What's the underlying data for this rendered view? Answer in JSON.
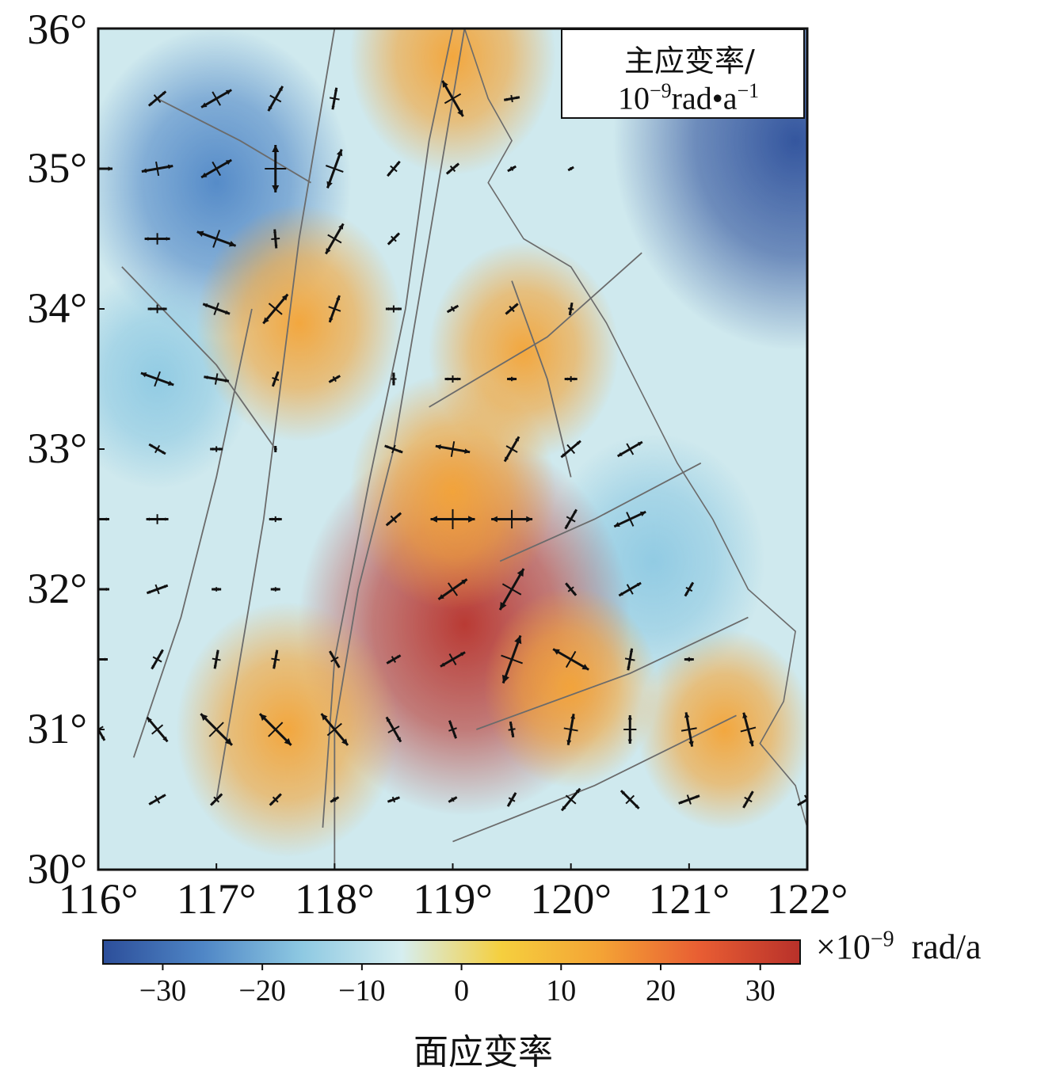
{
  "map": {
    "lon_ticks": [
      116,
      117,
      118,
      119,
      120,
      121,
      122
    ],
    "lat_ticks": [
      30,
      31,
      32,
      33,
      34,
      35,
      36
    ],
    "lon_labels": [
      "116°",
      "117°",
      "118°",
      "119°",
      "120°",
      "121°",
      "122°"
    ],
    "lat_labels": [
      "30°",
      "31°",
      "32°",
      "33°",
      "34°",
      "35°",
      "36°"
    ],
    "extent": {
      "lon": [
        116,
        122
      ],
      "lat": [
        30,
        36
      ]
    }
  },
  "legend": {
    "title": "主应变率/",
    "unit_base": "10",
    "unit_exp": "−9",
    "unit_rest": "rad•a",
    "unit_rest_exp": "−1"
  },
  "colorbar": {
    "ticks": [
      -30,
      -20,
      -10,
      0,
      10,
      20,
      30
    ],
    "tick_labels": [
      "−30",
      "−20",
      "−10",
      "0",
      "10",
      "20",
      "30"
    ],
    "range": [
      -36,
      34
    ],
    "unit_prefix": "×10",
    "unit_exp": "−9",
    "unit_suffix": "rad/a",
    "title": "面应变率",
    "colors": [
      "#2c4e9a",
      "#4f86c6",
      "#8ec9e2",
      "#d6eef0",
      "#f5cf3e",
      "#f4a335",
      "#e85d33",
      "#b8312a"
    ]
  },
  "strain_field_highs": [
    {
      "lon": 119.1,
      "lat": 31.75,
      "value": 30
    },
    {
      "lon": 119.6,
      "lat": 33.7,
      "value": 12
    },
    {
      "lon": 117.7,
      "lat": 33.9,
      "value": 14
    },
    {
      "lon": 117.6,
      "lat": 31.0,
      "value": 16
    },
    {
      "lon": 119.0,
      "lat": 32.7,
      "value": 14
    },
    {
      "lon": 119.0,
      "lat": 35.8,
      "value": 14
    },
    {
      "lon": 121.3,
      "lat": 31.0,
      "value": 10
    },
    {
      "lon": 120.0,
      "lat": 31.3,
      "value": 10
    }
  ],
  "strain_field_lows": [
    {
      "lon": 117.0,
      "lat": 34.9,
      "value": -22
    },
    {
      "lon": 120.7,
      "lat": 32.2,
      "value": -16
    },
    {
      "lon": 121.9,
      "lat": 35.2,
      "value": -34
    },
    {
      "lon": 116.5,
      "lat": 33.5,
      "value": -12
    }
  ],
  "strain_crosses": [
    {
      "lon": 116.5,
      "lat": 35.5,
      "len": 14,
      "ang": 40
    },
    {
      "lon": 117.0,
      "lat": 35.5,
      "len": 22,
      "ang": 30
    },
    {
      "lon": 117.5,
      "lat": 35.5,
      "len": 18,
      "ang": 60
    },
    {
      "lon": 118.0,
      "lat": 35.5,
      "len": 14,
      "ang": 80
    },
    {
      "lon": 119.0,
      "lat": 35.5,
      "len": 26,
      "ang": 120
    },
    {
      "lon": 119.5,
      "lat": 35.5,
      "len": 10,
      "ang": 10
    },
    {
      "lon": 116.0,
      "lat": 35.0,
      "len": 18,
      "ang": 0
    },
    {
      "lon": 116.5,
      "lat": 35.0,
      "len": 20,
      "ang": 10
    },
    {
      "lon": 117.0,
      "lat": 35.0,
      "len": 22,
      "ang": 30
    },
    {
      "lon": 117.5,
      "lat": 35.0,
      "len": 30,
      "ang": 90
    },
    {
      "lon": 118.0,
      "lat": 35.0,
      "len": 26,
      "ang": 70
    },
    {
      "lon": 118.5,
      "lat": 35.0,
      "len": 12,
      "ang": 50
    },
    {
      "lon": 119.0,
      "lat": 35.0,
      "len": 10,
      "ang": 40
    },
    {
      "lon": 119.5,
      "lat": 35.0,
      "len": 6,
      "ang": 30
    },
    {
      "lon": 120.0,
      "lat": 35.0,
      "len": 4,
      "ang": 30
    },
    {
      "lon": 116.5,
      "lat": 34.5,
      "len": 16,
      "ang": 0
    },
    {
      "lon": 117.0,
      "lat": 34.5,
      "len": 26,
      "ang": 160
    },
    {
      "lon": 117.5,
      "lat": 34.5,
      "len": 12,
      "ang": 95
    },
    {
      "lon": 118.0,
      "lat": 34.5,
      "len": 22,
      "ang": 60
    },
    {
      "lon": 118.5,
      "lat": 34.5,
      "len": 10,
      "ang": 45
    },
    {
      "lon": 116.5,
      "lat": 34.0,
      "len": 12,
      "ang": 0
    },
    {
      "lon": 117.0,
      "lat": 34.0,
      "len": 18,
      "ang": 160
    },
    {
      "lon": 117.5,
      "lat": 34.0,
      "len": 24,
      "ang": 50
    },
    {
      "lon": 118.0,
      "lat": 34.0,
      "len": 18,
      "ang": 70
    },
    {
      "lon": 118.5,
      "lat": 34.0,
      "len": 10,
      "ang": 0
    },
    {
      "lon": 119.0,
      "lat": 34.0,
      "len": 8,
      "ang": 30
    },
    {
      "lon": 119.5,
      "lat": 34.0,
      "len": 10,
      "ang": 40
    },
    {
      "lon": 120.0,
      "lat": 34.0,
      "len": 8,
      "ang": 80
    },
    {
      "lon": 116.5,
      "lat": 33.5,
      "len": 22,
      "ang": 160
    },
    {
      "lon": 117.0,
      "lat": 33.5,
      "len": 16,
      "ang": 170
    },
    {
      "lon": 117.5,
      "lat": 33.5,
      "len": 10,
      "ang": 70
    },
    {
      "lon": 118.0,
      "lat": 33.5,
      "len": 8,
      "ang": 30
    },
    {
      "lon": 118.5,
      "lat": 33.5,
      "len": 8,
      "ang": 90
    },
    {
      "lon": 119.0,
      "lat": 33.5,
      "len": 10,
      "ang": 0
    },
    {
      "lon": 119.5,
      "lat": 33.5,
      "len": 6,
      "ang": 0
    },
    {
      "lon": 120.0,
      "lat": 33.5,
      "len": 8,
      "ang": 0
    },
    {
      "lon": 116.5,
      "lat": 33.0,
      "len": 12,
      "ang": 150
    },
    {
      "lon": 117.0,
      "lat": 33.0,
      "len": 8,
      "ang": 0
    },
    {
      "lon": 117.5,
      "lat": 33.0,
      "len": 4,
      "ang": 90
    },
    {
      "lon": 118.5,
      "lat": 33.0,
      "len": 12,
      "ang": 160
    },
    {
      "lon": 119.0,
      "lat": 33.0,
      "len": 22,
      "ang": 170
    },
    {
      "lon": 119.5,
      "lat": 33.0,
      "len": 18,
      "ang": 60
    },
    {
      "lon": 120.0,
      "lat": 33.0,
      "len": 16,
      "ang": 40
    },
    {
      "lon": 120.5,
      "lat": 33.0,
      "len": 18,
      "ang": 30
    },
    {
      "lon": 116.0,
      "lat": 32.5,
      "len": 14,
      "ang": 0
    },
    {
      "lon": 116.5,
      "lat": 32.5,
      "len": 14,
      "ang": 0
    },
    {
      "lon": 117.5,
      "lat": 32.5,
      "len": 8,
      "ang": 0
    },
    {
      "lon": 118.5,
      "lat": 32.5,
      "len": 12,
      "ang": 40
    },
    {
      "lon": 119.0,
      "lat": 32.5,
      "len": 28,
      "ang": 0
    },
    {
      "lon": 119.5,
      "lat": 32.5,
      "len": 26,
      "ang": 0
    },
    {
      "lon": 120.0,
      "lat": 32.5,
      "len": 14,
      "ang": 60
    },
    {
      "lon": 120.5,
      "lat": 32.5,
      "len": 22,
      "ang": 25
    },
    {
      "lon": 116.0,
      "lat": 32.0,
      "len": 14,
      "ang": 0
    },
    {
      "lon": 116.5,
      "lat": 32.0,
      "len": 14,
      "ang": 20
    },
    {
      "lon": 117.0,
      "lat": 32.0,
      "len": 6,
      "ang": 0
    },
    {
      "lon": 117.5,
      "lat": 32.0,
      "len": 6,
      "ang": 0
    },
    {
      "lon": 119.0,
      "lat": 32.0,
      "len": 22,
      "ang": 35
    },
    {
      "lon": 119.5,
      "lat": 32.0,
      "len": 30,
      "ang": 60
    },
    {
      "lon": 120.0,
      "lat": 32.0,
      "len": 10,
      "ang": 130
    },
    {
      "lon": 120.5,
      "lat": 32.0,
      "len": 16,
      "ang": 30
    },
    {
      "lon": 121.0,
      "lat": 32.0,
      "len": 10,
      "ang": 60
    },
    {
      "lon": 116.0,
      "lat": 31.5,
      "len": 12,
      "ang": 0
    },
    {
      "lon": 116.5,
      "lat": 31.5,
      "len": 14,
      "ang": 60
    },
    {
      "lon": 117.0,
      "lat": 31.5,
      "len": 12,
      "ang": 80
    },
    {
      "lon": 117.5,
      "lat": 31.5,
      "len": 12,
      "ang": 80
    },
    {
      "lon": 118.0,
      "lat": 31.5,
      "len": 12,
      "ang": 120
    },
    {
      "lon": 118.5,
      "lat": 31.5,
      "len": 10,
      "ang": 30
    },
    {
      "lon": 119.0,
      "lat": 31.5,
      "len": 18,
      "ang": 30
    },
    {
      "lon": 119.5,
      "lat": 31.5,
      "len": 32,
      "ang": 70
    },
    {
      "lon": 120.0,
      "lat": 31.5,
      "len": 26,
      "ang": 150
    },
    {
      "lon": 120.5,
      "lat": 31.5,
      "len": 14,
      "ang": 80
    },
    {
      "lon": 121.0,
      "lat": 31.5,
      "len": 6,
      "ang": 0
    },
    {
      "lon": 116.0,
      "lat": 31.0,
      "len": 16,
      "ang": 120
    },
    {
      "lon": 116.5,
      "lat": 31.0,
      "len": 20,
      "ang": 130
    },
    {
      "lon": 117.0,
      "lat": 31.0,
      "len": 28,
      "ang": 135
    },
    {
      "lon": 117.5,
      "lat": 31.0,
      "len": 28,
      "ang": 135
    },
    {
      "lon": 118.0,
      "lat": 31.0,
      "len": 26,
      "ang": 130
    },
    {
      "lon": 118.5,
      "lat": 31.0,
      "len": 18,
      "ang": 120
    },
    {
      "lon": 119.0,
      "lat": 31.0,
      "len": 12,
      "ang": 110
    },
    {
      "lon": 119.5,
      "lat": 31.0,
      "len": 10,
      "ang": 100
    },
    {
      "lon": 120.0,
      "lat": 31.0,
      "len": 20,
      "ang": 80
    },
    {
      "lon": 120.5,
      "lat": 31.0,
      "len": 18,
      "ang": 90
    },
    {
      "lon": 121.0,
      "lat": 31.0,
      "len": 22,
      "ang": 100
    },
    {
      "lon": 121.5,
      "lat": 31.0,
      "len": 22,
      "ang": 105
    },
    {
      "lon": 116.5,
      "lat": 30.5,
      "len": 12,
      "ang": 30
    },
    {
      "lon": 117.0,
      "lat": 30.5,
      "len": 10,
      "ang": 45
    },
    {
      "lon": 117.5,
      "lat": 30.5,
      "len": 10,
      "ang": 45
    },
    {
      "lon": 118.0,
      "lat": 30.5,
      "len": 6,
      "ang": 30
    },
    {
      "lon": 118.5,
      "lat": 30.5,
      "len": 8,
      "ang": 20
    },
    {
      "lon": 119.0,
      "lat": 30.5,
      "len": 6,
      "ang": 30
    },
    {
      "lon": 119.5,
      "lat": 30.5,
      "len": 10,
      "ang": 60
    },
    {
      "lon": 120.0,
      "lat": 30.5,
      "len": 18,
      "ang": 50
    },
    {
      "lon": 120.5,
      "lat": 30.5,
      "len": 16,
      "ang": 135
    },
    {
      "lon": 121.0,
      "lat": 30.5,
      "len": 14,
      "ang": 20
    },
    {
      "lon": 121.5,
      "lat": 30.5,
      "len": 12,
      "ang": 60
    },
    {
      "lon": 122.0,
      "lat": 30.5,
      "len": 14,
      "ang": 30
    }
  ],
  "faults": [
    [
      [
        118.0,
        30.0
      ],
      [
        118.0,
        31.0
      ],
      [
        118.2,
        32.0
      ],
      [
        118.5,
        33.0
      ],
      [
        118.7,
        34.0
      ],
      [
        118.9,
        35.0
      ],
      [
        119.1,
        36.0
      ]
    ],
    [
      [
        117.9,
        30.3
      ],
      [
        118.0,
        31.5
      ],
      [
        118.3,
        32.8
      ],
      [
        118.6,
        34.0
      ],
      [
        118.8,
        35.2
      ],
      [
        119.0,
        36.0
      ]
    ],
    [
      [
        117.0,
        30.5
      ],
      [
        117.2,
        31.5
      ],
      [
        117.4,
        32.5
      ],
      [
        117.7,
        34.5
      ],
      [
        118.0,
        36.0
      ]
    ],
    [
      [
        116.3,
        30.8
      ],
      [
        116.7,
        31.8
      ],
      [
        117.0,
        32.8
      ],
      [
        117.3,
        34.0
      ]
    ],
    [
      [
        118.8,
        33.3
      ],
      [
        119.8,
        33.8
      ],
      [
        120.6,
        34.4
      ]
    ],
    [
      [
        119.2,
        31.0
      ],
      [
        120.5,
        31.4
      ],
      [
        121.5,
        31.8
      ]
    ],
    [
      [
        119.0,
        30.2
      ],
      [
        120.2,
        30.6
      ],
      [
        121.4,
        31.1
      ]
    ],
    [
      [
        116.2,
        34.3
      ],
      [
        117.0,
        33.6
      ],
      [
        117.5,
        33.0
      ]
    ],
    [
      [
        119.4,
        32.2
      ],
      [
        120.2,
        32.5
      ],
      [
        121.1,
        32.9
      ]
    ],
    [
      [
        116.5,
        35.5
      ],
      [
        117.2,
        35.2
      ],
      [
        117.8,
        34.9
      ]
    ],
    [
      [
        119.5,
        34.2
      ],
      [
        119.8,
        33.5
      ],
      [
        120.0,
        32.8
      ]
    ]
  ],
  "coast": [
    [
      119.1,
      36.0
    ],
    [
      119.3,
      35.5
    ],
    [
      119.5,
      35.2
    ],
    [
      119.3,
      34.9
    ],
    [
      119.6,
      34.5
    ],
    [
      120.0,
      34.3
    ],
    [
      120.3,
      33.9
    ],
    [
      120.6,
      33.4
    ],
    [
      120.9,
      32.9
    ],
    [
      121.2,
      32.5
    ],
    [
      121.5,
      32.0
    ],
    [
      121.9,
      31.7
    ],
    [
      121.8,
      31.2
    ],
    [
      121.6,
      30.9
    ],
    [
      121.9,
      30.6
    ],
    [
      122.0,
      30.3
    ]
  ]
}
